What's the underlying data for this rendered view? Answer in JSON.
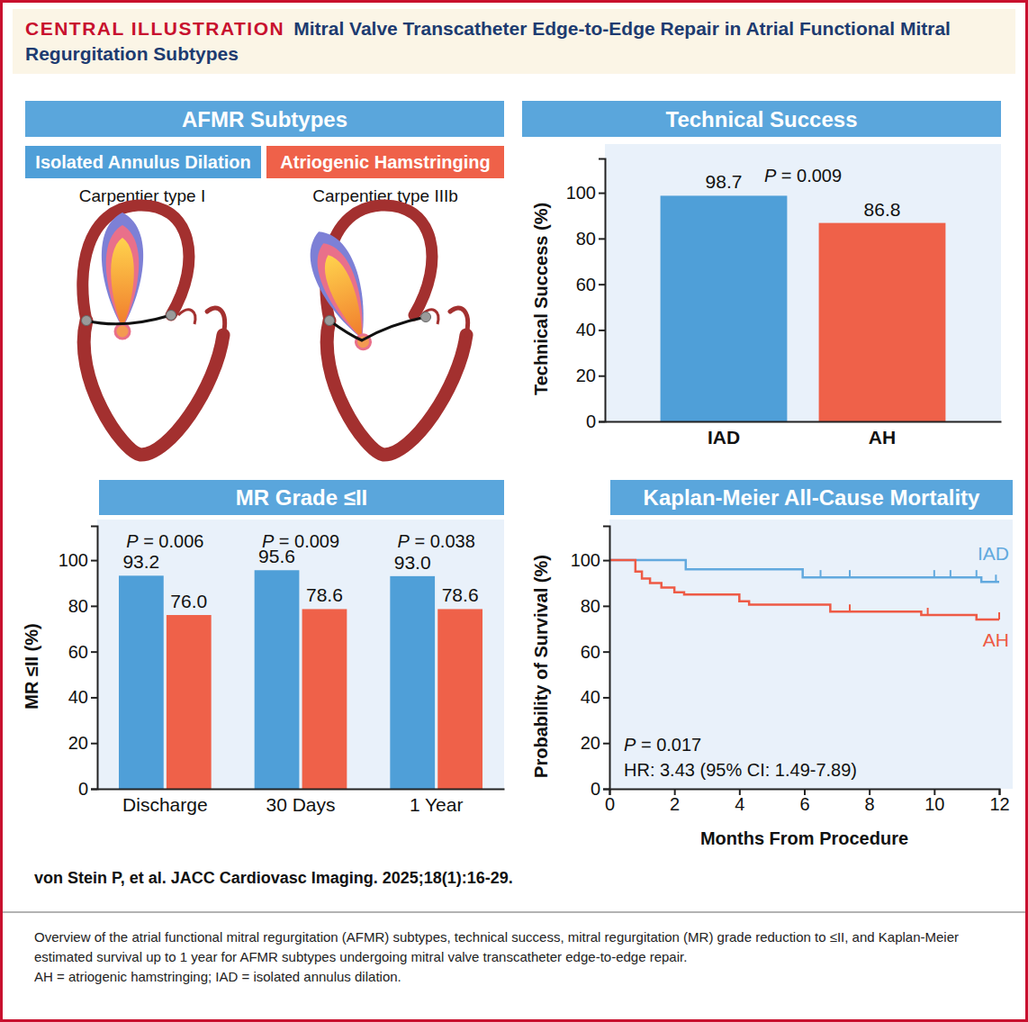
{
  "header": {
    "label": "CENTRAL ILLUSTRATION",
    "title": "Mitral Valve Transcatheter Edge-to-Edge Repair in Atrial Functional Mitral Regurgitation Subtypes"
  },
  "subtypes": {
    "title": "AFMR Subtypes",
    "items": [
      {
        "name": "Isolated Annulus Dilation",
        "classification": "Carpentier type I",
        "color": "#4f9fd8"
      },
      {
        "name": "Atriogenic Hamstringing",
        "classification": "Carpentier type IIIb",
        "color": "#ef6149"
      }
    ]
  },
  "chart_data": [
    {
      "type": "bar",
      "title": "Technical Success",
      "y_label": "Technical Success (%)",
      "categories": [
        "IAD",
        "AH"
      ],
      "values": [
        98.7,
        86.8
      ],
      "colors": [
        "#4f9fd8",
        "#ef6149"
      ],
      "ylim": [
        0,
        115
      ],
      "yticks": [
        0,
        20,
        40,
        60,
        80,
        100
      ],
      "data_labels": true,
      "annotations": [
        "P = 0.009"
      ]
    },
    {
      "type": "bar",
      "title": "MR Grade ≤II",
      "y_label": "MR ≤II (%)",
      "categories": [
        "Discharge",
        "30 Days",
        "1 Year"
      ],
      "series": [
        {
          "color": "#4f9fd8",
          "values": [
            93.2,
            95.6,
            93.0
          ],
          "value_labels": [
            "93.2",
            "95.6",
            "93.0"
          ]
        },
        {
          "color": "#ef6149",
          "values": [
            76.0,
            78.6,
            78.6
          ],
          "value_labels": [
            "76.0",
            "78.6",
            "78.6"
          ]
        }
      ],
      "ylim": [
        0,
        115
      ],
      "yticks": [
        0,
        20,
        40,
        60,
        80,
        100
      ],
      "data_labels": true,
      "annotations": [
        "P = 0.006",
        "P = 0.009",
        "P = 0.038"
      ]
    },
    {
      "type": "line",
      "line_style": "step",
      "title": "Kaplan-Meier All-Cause Mortality",
      "x_label": "Months From Procedure",
      "y_label": "Probability of Survival (%)",
      "xlim": [
        0,
        12
      ],
      "xticks": [
        0,
        2,
        4,
        6,
        8,
        10,
        12
      ],
      "ylim": [
        0,
        115
      ],
      "yticks": [
        0,
        20,
        40,
        60,
        80,
        100
      ],
      "series": [
        {
          "name": "IAD",
          "color": "#62a9de",
          "x": [
            0,
            2.35,
            5.95,
            11.45,
            12
          ],
          "values": [
            100,
            96,
            92.5,
            90.5,
            90.5
          ],
          "censored_x": [
            6.5,
            7.4,
            10.0,
            10.5,
            11.3,
            11.9
          ],
          "censored_y": [
            92.5,
            92.5,
            92.5,
            92.5,
            92.5,
            90.5
          ]
        },
        {
          "name": "AH",
          "color": "#ee5a45",
          "x": [
            0,
            0.8,
            1.0,
            1.25,
            1.6,
            2.0,
            2.3,
            4.0,
            4.3,
            6.8,
            9.6,
            11.3,
            12
          ],
          "values": [
            100,
            95,
            92,
            90,
            88,
            86,
            85,
            82,
            80.5,
            77.5,
            76,
            74,
            74
          ],
          "censored_x": [
            7.4,
            9.8,
            12
          ],
          "censored_y": [
            77.5,
            76,
            74
          ]
        }
      ],
      "annotations": [
        "P = 0.017",
        "HR: 3.43 (95% CI: 1.49-7.89)"
      ]
    }
  ],
  "citation": "von Stein P, et al. JACC Cardiovasc Imaging. 2025;18(1):16-29.",
  "caption": {
    "text": "Overview of the atrial functional mitral regurgitation (AFMR) subtypes, technical success, mitral regurgitation (MR) grade reduction to ≤II, and Kaplan-Meier estimated survival up to 1 year for AFMR subtypes undergoing mitral valve transcatheter edge-to-edge repair.",
    "abbreviations": "AH = atriogenic hamstringing; IAD = isolated annulus dilation."
  }
}
